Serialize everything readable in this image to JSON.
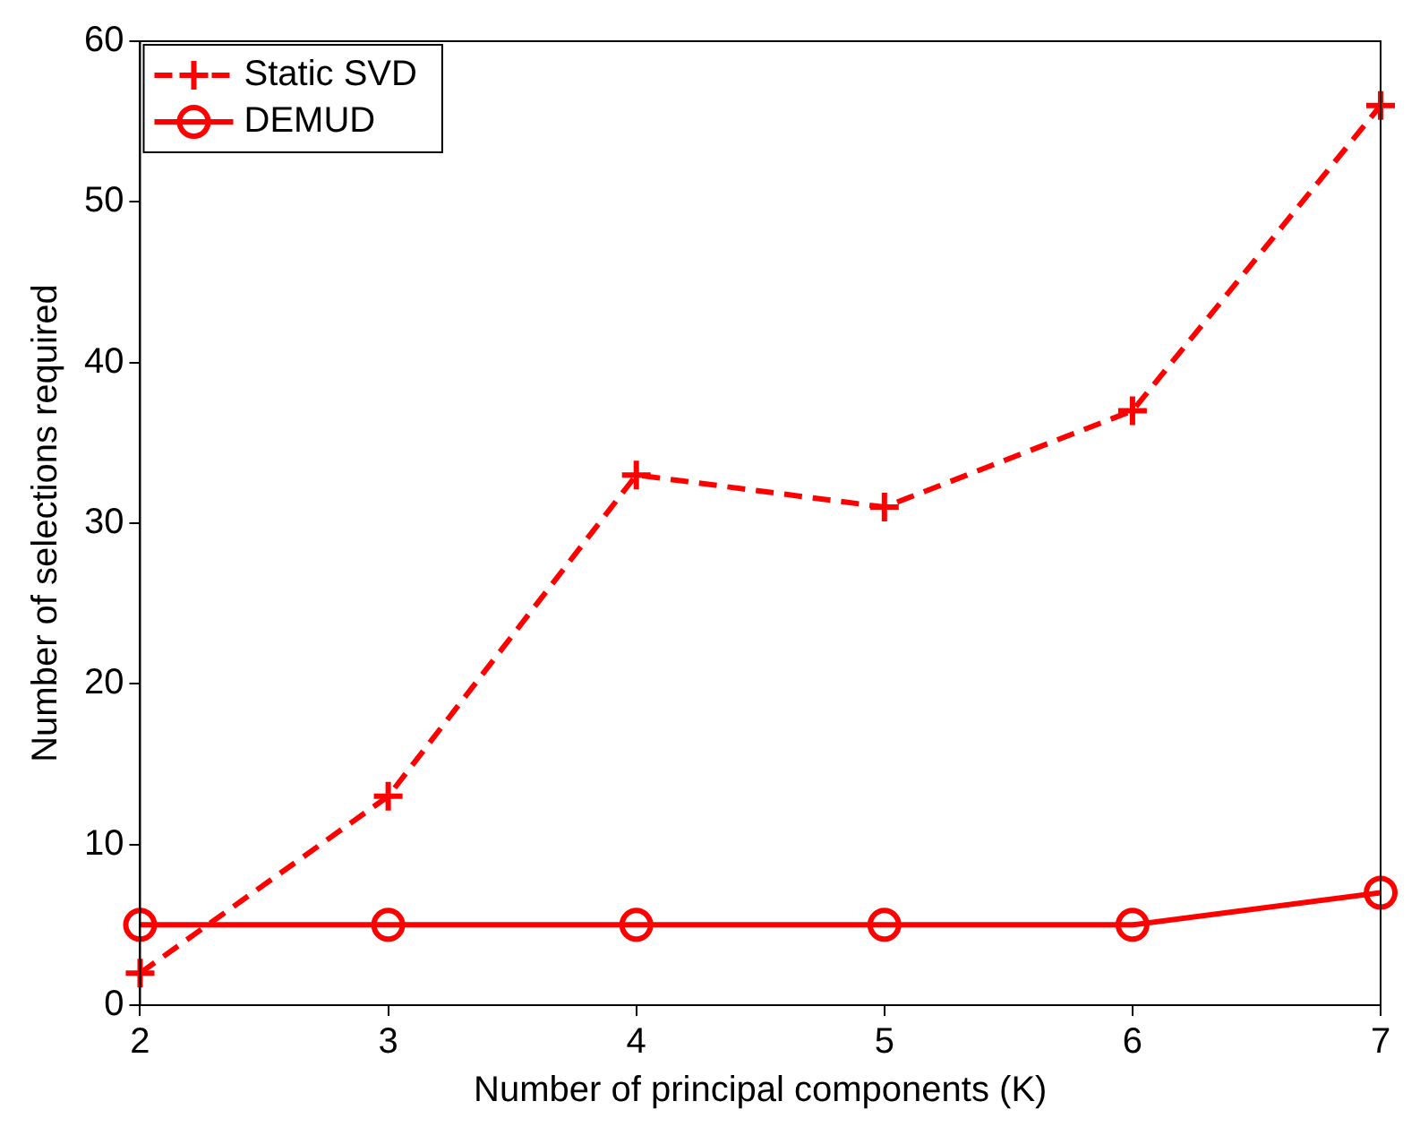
{
  "chart_data": {
    "type": "line",
    "xlabel": "Number of principal components (K)",
    "ylabel": "Number of selections required",
    "x": [
      2,
      3,
      4,
      5,
      6,
      7
    ],
    "xlim": [
      2,
      7
    ],
    "xticks": [
      2,
      3,
      4,
      5,
      6,
      7
    ],
    "ylim": [
      0,
      60
    ],
    "yticks": [
      0,
      10,
      20,
      30,
      40,
      50,
      60
    ],
    "grid": false,
    "legend": "top left",
    "series": [
      {
        "name": "Static SVD",
        "color": "#ff0000",
        "values": [
          2,
          13,
          33,
          31,
          37,
          56
        ],
        "marker": "cross",
        "line_style": "dashed"
      },
      {
        "name": "DEMUD",
        "color": "#ff0000",
        "values": [
          5,
          5,
          5,
          5,
          5,
          7
        ],
        "marker": "circle",
        "line_style": "solid"
      }
    ]
  }
}
